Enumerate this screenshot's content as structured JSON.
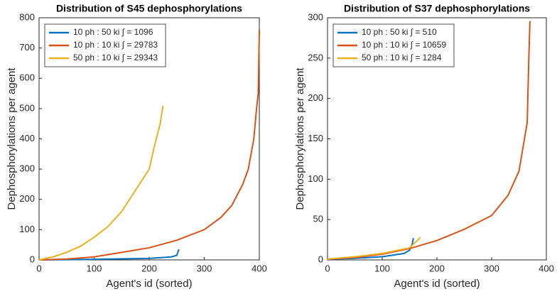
{
  "chart_data": [
    {
      "type": "line",
      "title": "Distribution of S45 dephosphorylations",
      "x_label": "Agent's id (sorted)",
      "y_label": "Dephosphorylations per agent",
      "xlim": [
        0,
        400
      ],
      "ylim": [
        0,
        800
      ],
      "xticks": [
        0,
        100,
        200,
        300,
        400
      ],
      "yticks": [
        0,
        100,
        200,
        300,
        400,
        500,
        600,
        700,
        800
      ],
      "legend": "upper-left",
      "series": [
        {
          "name": "10 ph : 50 ki ∫ = 1096",
          "color": "#0072BD",
          "x": [
            0,
            100,
            200,
            240,
            250,
            252,
            254
          ],
          "values": [
            0,
            2,
            5,
            10,
            15,
            25,
            35
          ]
        },
        {
          "name": "10 ph : 10 ki ∫ = 29783",
          "color": "#D95319",
          "x": [
            0,
            50,
            100,
            150,
            200,
            250,
            300,
            330,
            350,
            370,
            380,
            390,
            395,
            398,
            400
          ],
          "values": [
            0,
            3,
            10,
            25,
            40,
            65,
            100,
            140,
            180,
            250,
            300,
            400,
            500,
            550,
            760
          ]
        },
        {
          "name": "50 ph : 10 ki ∫ = 29343",
          "color": "#EDB120",
          "x": [
            0,
            25,
            50,
            75,
            100,
            125,
            150,
            175,
            200,
            210,
            220,
            225
          ],
          "values": [
            0,
            10,
            25,
            45,
            75,
            110,
            160,
            230,
            300,
            380,
            450,
            510
          ]
        }
      ]
    },
    {
      "type": "line",
      "title": "Distribution of S37 dephosphorylations",
      "x_label": "Agent's id (sorted)",
      "y_label": "Dephosphorylations per agent",
      "xlim": [
        0,
        400
      ],
      "ylim": [
        0,
        300
      ],
      "xticks": [
        0,
        100,
        200,
        300,
        400
      ],
      "yticks": [
        0,
        50,
        100,
        150,
        200,
        250,
        300
      ],
      "legend": "upper-left",
      "series": [
        {
          "name": "10 ph : 50 ki ∫ = 510",
          "color": "#0072BD",
          "x": [
            0,
            50,
            100,
            140,
            150,
            155,
            157
          ],
          "values": [
            1,
            2,
            4,
            8,
            12,
            20,
            27
          ]
        },
        {
          "name": "10 ph : 10 ki ∫ = 10659",
          "color": "#D95319",
          "x": [
            0,
            50,
            100,
            150,
            200,
            250,
            300,
            330,
            350,
            360,
            365,
            368,
            370
          ],
          "values": [
            1,
            3,
            7,
            14,
            24,
            38,
            55,
            80,
            110,
            150,
            170,
            250,
            296
          ]
        },
        {
          "name": "50 ph : 10 ki ∫ = 1284",
          "color": "#EDB120",
          "x": [
            0,
            50,
            100,
            150,
            170
          ],
          "values": [
            1,
            4,
            8,
            15,
            28
          ]
        }
      ]
    }
  ]
}
